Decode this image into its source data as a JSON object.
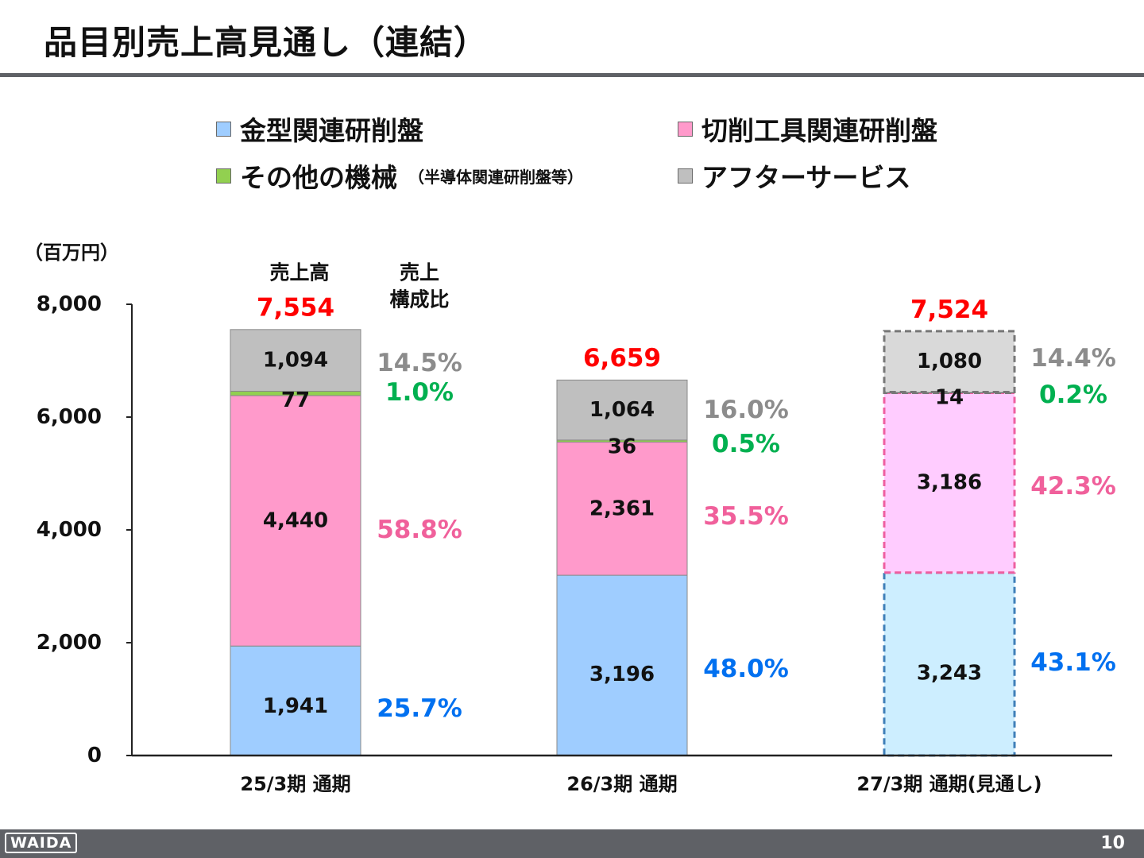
{
  "page": {
    "title": "品目別売上高見通し（連結）",
    "logo": "WAIDA",
    "page_number": "10"
  },
  "legend": [
    {
      "label": "金型関連研削盤",
      "note": "",
      "color": "#9fcdff"
    },
    {
      "label": "切削工具関連研削盤",
      "note": "",
      "color": "#ff9acb"
    },
    {
      "label": "その他の機械",
      "note": "（半導体関連研削盤等）",
      "color": "#92d050"
    },
    {
      "label": "アフターサービス",
      "note": "",
      "color": "#bfbfbf"
    }
  ],
  "chart_data": {
    "type": "bar",
    "stacked": true,
    "unit_label": "（百万円）",
    "column_headers": {
      "sales": "売上高",
      "ratio": "売上\n構成比"
    },
    "categories": [
      "25/3期 通期",
      "26/3期 通期",
      "27/3期 通期(見通し)"
    ],
    "forecast_flags": [
      false,
      false,
      true
    ],
    "series": [
      {
        "name": "金型関連研削盤",
        "values": [
          1941,
          3196,
          3243
        ],
        "value_labels": [
          "1,941",
          "3,196",
          "3,243"
        ],
        "ratio_labels": [
          "25.7%",
          "48.0%",
          "43.1%"
        ],
        "color": "#9fcdff",
        "forecast_color": "#cdeeff",
        "ratio_color": "#0070f0"
      },
      {
        "name": "切削工具関連研削盤",
        "values": [
          4440,
          2361,
          3186
        ],
        "value_labels": [
          "4,440",
          "2,361",
          "3,186"
        ],
        "ratio_labels": [
          "58.8%",
          "35.5%",
          "42.3%"
        ],
        "color": "#ff9acb",
        "forecast_color": "#ffccff",
        "ratio_color": "#f0609b"
      },
      {
        "name": "その他の機械",
        "values": [
          77,
          36,
          14
        ],
        "value_labels": [
          "77",
          "36",
          "14"
        ],
        "ratio_labels": [
          "1.0%",
          "0.5%",
          "0.2%"
        ],
        "color": "#92d050",
        "forecast_color": "#92d050",
        "ratio_color": "#00b050"
      },
      {
        "name": "アフターサービス",
        "values": [
          1094,
          1064,
          1080
        ],
        "value_labels": [
          "1,094",
          "1,064",
          "1,080"
        ],
        "ratio_labels": [
          "14.5%",
          "16.0%",
          "14.4%"
        ],
        "color": "#bfbfbf",
        "forecast_color": "#d9d9d9",
        "ratio_color": "#8c8c8c"
      }
    ],
    "totals": [
      7554,
      6659,
      7524
    ],
    "total_labels": [
      "7,554",
      "6,659",
      "7,524"
    ],
    "total_color": "#ff0000",
    "ylim": [
      0,
      8000
    ],
    "yticks": [
      0,
      2000,
      4000,
      6000,
      8000
    ],
    "ytick_labels": [
      "0",
      "2,000",
      "4,000",
      "6,000",
      "8,000"
    ],
    "grid": false,
    "legend_position": "top"
  }
}
